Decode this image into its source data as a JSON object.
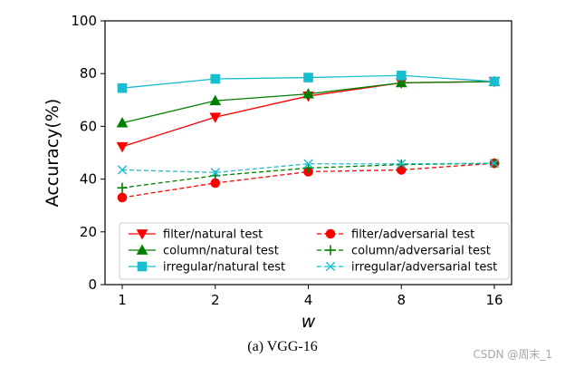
{
  "chart_data": {
    "type": "line",
    "title": "",
    "xlabel": "w",
    "ylabel": "Accuracy(%)",
    "x": [
      "1",
      "2",
      "4",
      "8",
      "16"
    ],
    "xscale": "log2",
    "ylim": [
      0,
      100
    ],
    "yticks": [
      "0",
      "20",
      "40",
      "60",
      "80",
      "100"
    ],
    "grid": false,
    "legend_position": "lower-center",
    "series": [
      {
        "name": "filter/natural test",
        "color": "#ff0000",
        "marker": "triangle-down",
        "linestyle": "solid",
        "values": [
          52.3,
          63.5,
          71.5,
          76.5,
          77.0
        ]
      },
      {
        "name": "filter/adversarial test",
        "color": "#ff0000",
        "marker": "circle",
        "linestyle": "dashed",
        "values": [
          33.0,
          38.5,
          42.8,
          43.5,
          46.0
        ]
      },
      {
        "name": "column/natural test",
        "color": "#008000",
        "marker": "triangle-up",
        "linestyle": "solid",
        "values": [
          61.3,
          69.7,
          72.3,
          76.5,
          77.0
        ]
      },
      {
        "name": "column/adversarial test",
        "color": "#008000",
        "marker": "plus",
        "linestyle": "dashed",
        "values": [
          36.7,
          41.3,
          44.2,
          45.5,
          46.0
        ]
      },
      {
        "name": "irregular/natural test",
        "color": "#17becf",
        "marker": "square",
        "linestyle": "solid",
        "values": [
          74.5,
          78.0,
          78.5,
          79.3,
          77.0
        ]
      },
      {
        "name": "irregular/adversarial test",
        "color": "#17becf",
        "marker": "x",
        "linestyle": "dashed",
        "values": [
          43.5,
          42.5,
          45.8,
          45.8,
          46.0
        ]
      }
    ]
  },
  "caption": "(a) VGG-16",
  "watermark": "CSDN @周末_1"
}
